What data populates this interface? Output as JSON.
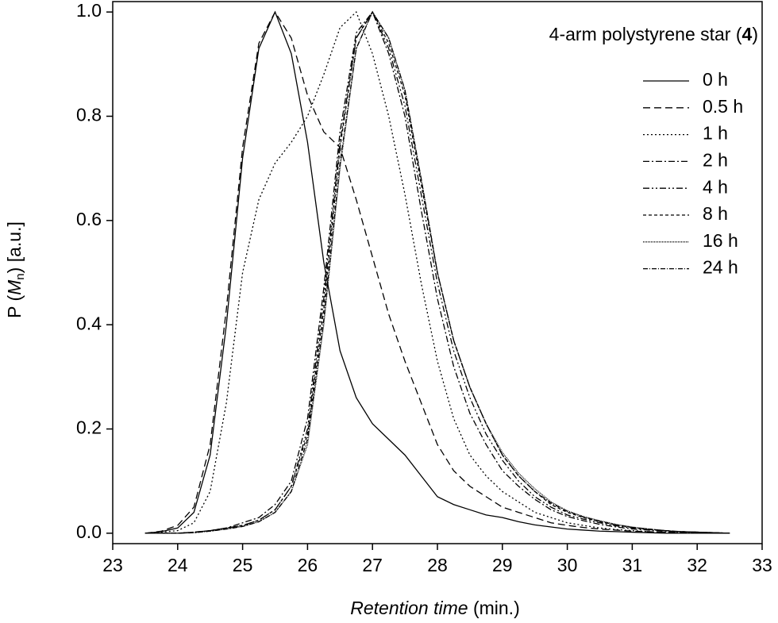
{
  "chart_data": {
    "type": "line",
    "annotation": [
      "4-arm polystyrene star (",
      "4",
      ")"
    ],
    "x_label": [
      "Retention time",
      " (min.)"
    ],
    "y_label": [
      "P (",
      "M",
      "n",
      ") [a.u.]"
    ],
    "x": [
      23.5,
      23.75,
      24,
      24.25,
      24.5,
      24.75,
      25,
      25.25,
      25.5,
      25.75,
      26,
      26.25,
      26.5,
      26.75,
      27,
      27.25,
      27.5,
      27.75,
      28,
      28.25,
      28.5,
      28.75,
      29,
      29.25,
      29.5,
      29.75,
      30,
      30.25,
      30.5,
      30.75,
      31,
      31.25,
      31.5,
      31.75,
      32,
      32.25,
      32.5
    ],
    "series": [
      {
        "name": "0 h",
        "color": "#000000",
        "dash": "none",
        "values": [
          0,
          0.003,
          0.01,
          0.04,
          0.15,
          0.4,
          0.72,
          0.93,
          1.0,
          0.92,
          0.75,
          0.52,
          0.35,
          0.26,
          0.21,
          0.18,
          0.15,
          0.11,
          0.07,
          0.055,
          0.045,
          0.035,
          0.03,
          0.022,
          0.016,
          0.012,
          0.008,
          0.006,
          0.004,
          0.003,
          0.002,
          0.001,
          0,
          0,
          0,
          0,
          0
        ]
      },
      {
        "name": "0.5 h",
        "color": "#000000",
        "dash": "9,5",
        "values": [
          0,
          0.004,
          0.015,
          0.05,
          0.17,
          0.43,
          0.74,
          0.94,
          1.0,
          0.95,
          0.84,
          0.77,
          0.74,
          0.64,
          0.53,
          0.42,
          0.33,
          0.25,
          0.17,
          0.12,
          0.09,
          0.07,
          0.05,
          0.04,
          0.03,
          0.02,
          0.015,
          0.011,
          0.008,
          0.006,
          0.004,
          0.003,
          0.002,
          0.001,
          0,
          0,
          0
        ]
      },
      {
        "name": "1 h",
        "color": "#000000",
        "dash": "2,3",
        "values": [
          0,
          0.002,
          0.005,
          0.02,
          0.08,
          0.25,
          0.5,
          0.64,
          0.71,
          0.75,
          0.8,
          0.88,
          0.97,
          1.0,
          0.92,
          0.8,
          0.65,
          0.48,
          0.33,
          0.22,
          0.15,
          0.11,
          0.08,
          0.06,
          0.04,
          0.03,
          0.02,
          0.015,
          0.01,
          0.007,
          0.005,
          0.003,
          0.002,
          0.001,
          0,
          0,
          0
        ]
      },
      {
        "name": "2 h",
        "color": "#000000",
        "dash": "8,3,2,3",
        "values": [
          0,
          0,
          0,
          0.002,
          0.005,
          0.01,
          0.02,
          0.03,
          0.055,
          0.1,
          0.22,
          0.47,
          0.77,
          0.96,
          1.0,
          0.92,
          0.8,
          0.62,
          0.45,
          0.32,
          0.23,
          0.17,
          0.12,
          0.09,
          0.065,
          0.045,
          0.032,
          0.024,
          0.017,
          0.012,
          0.008,
          0.006,
          0.004,
          0.003,
          0.002,
          0.001,
          0
        ]
      },
      {
        "name": "4 h",
        "color": "#000000",
        "dash": "8,3,2,3,2,3",
        "values": [
          0,
          0,
          0,
          0.002,
          0.005,
          0.01,
          0.015,
          0.025,
          0.045,
          0.09,
          0.2,
          0.45,
          0.75,
          0.95,
          1.0,
          0.93,
          0.82,
          0.65,
          0.48,
          0.35,
          0.26,
          0.19,
          0.14,
          0.1,
          0.07,
          0.05,
          0.035,
          0.027,
          0.02,
          0.014,
          0.01,
          0.007,
          0.005,
          0.003,
          0.002,
          0.001,
          0
        ]
      },
      {
        "name": "8 h",
        "color": "#000000",
        "dash": "4,3",
        "values": [
          0,
          0,
          0,
          0.002,
          0.005,
          0.01,
          0.015,
          0.025,
          0.045,
          0.09,
          0.19,
          0.43,
          0.74,
          0.95,
          1.0,
          0.94,
          0.84,
          0.67,
          0.5,
          0.37,
          0.28,
          0.21,
          0.15,
          0.11,
          0.08,
          0.055,
          0.04,
          0.03,
          0.022,
          0.016,
          0.011,
          0.008,
          0.005,
          0.003,
          0.002,
          0.001,
          0
        ]
      },
      {
        "name": "16 h",
        "color": "#000000",
        "dash": "1,1",
        "values": [
          0,
          0,
          0,
          0.001,
          0.004,
          0.008,
          0.013,
          0.022,
          0.04,
          0.08,
          0.17,
          0.4,
          0.7,
          0.93,
          1.0,
          0.95,
          0.85,
          0.68,
          0.5,
          0.37,
          0.28,
          0.21,
          0.155,
          0.115,
          0.085,
          0.06,
          0.043,
          0.032,
          0.024,
          0.017,
          0.012,
          0.008,
          0.005,
          0.003,
          0.002,
          0.001,
          0
        ]
      },
      {
        "name": "24 h",
        "color": "#000000",
        "dash": "6,2,1,2",
        "values": [
          0,
          0,
          0,
          0.001,
          0.004,
          0.008,
          0.013,
          0.022,
          0.04,
          0.08,
          0.18,
          0.41,
          0.71,
          0.93,
          1.0,
          0.95,
          0.85,
          0.68,
          0.5,
          0.37,
          0.28,
          0.21,
          0.15,
          0.11,
          0.08,
          0.058,
          0.042,
          0.031,
          0.023,
          0.016,
          0.011,
          0.008,
          0.005,
          0.003,
          0.002,
          0.001,
          0
        ]
      }
    ],
    "xlim": [
      23,
      33
    ],
    "ylim": [
      -0.02,
      1.02
    ],
    "xticks": [
      23,
      24,
      25,
      26,
      27,
      28,
      29,
      30,
      31,
      32,
      33
    ],
    "yticks": [
      {
        "value": 0,
        "label": "0.0"
      },
      {
        "value": 0.2,
        "label": "0.2"
      },
      {
        "value": 0.4,
        "label": "0.4"
      },
      {
        "value": 0.6,
        "label": "0.6"
      },
      {
        "value": 0.8,
        "label": "0.8"
      },
      {
        "value": 1,
        "label": "1.0"
      }
    ],
    "grid": false,
    "legend": "upper right"
  }
}
